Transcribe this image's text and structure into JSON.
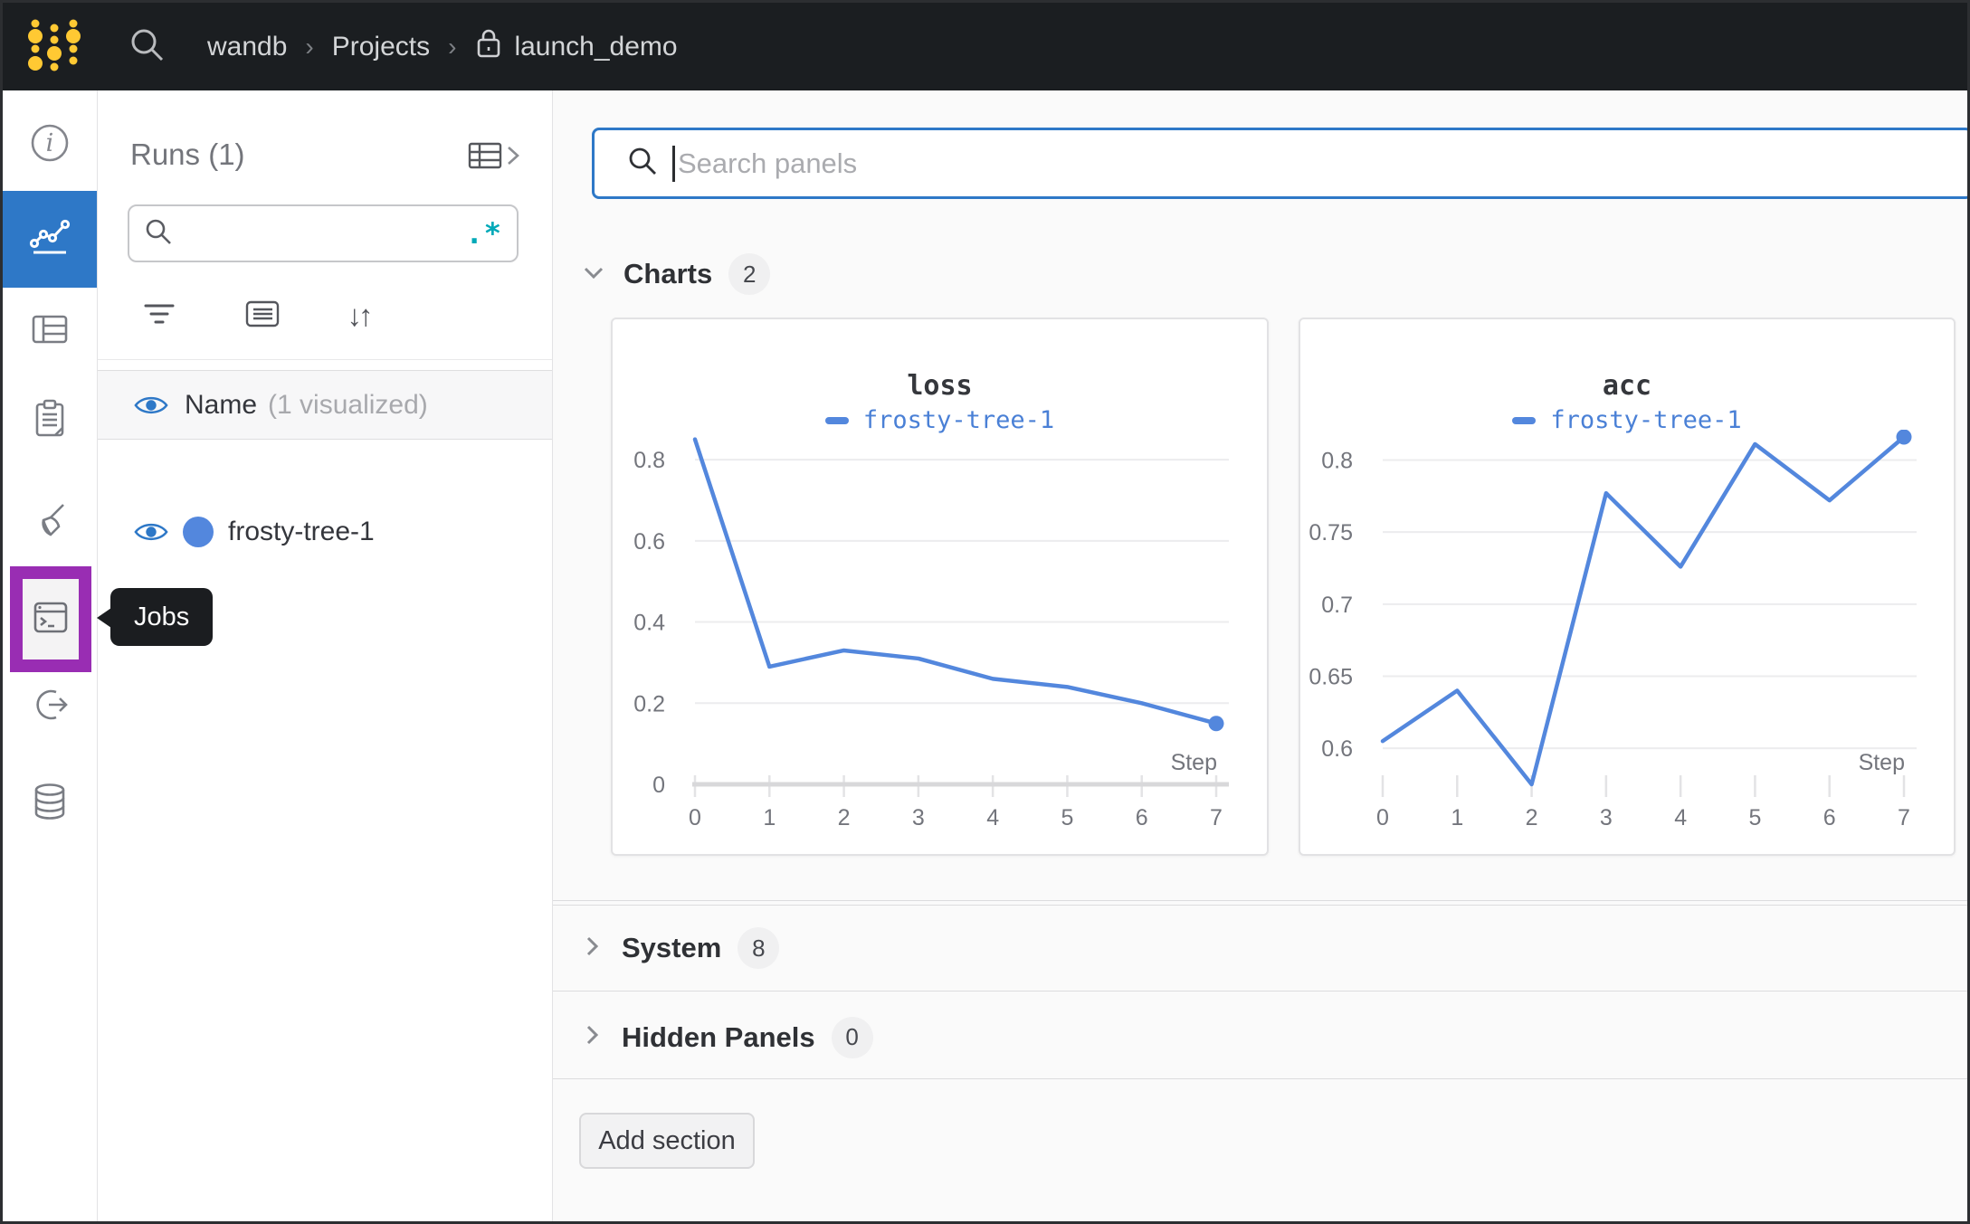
{
  "navbar": {
    "separator": "›",
    "breadcrumb": [
      {
        "label": "wandb"
      },
      {
        "label": "Projects"
      },
      {
        "label": "launch_demo"
      }
    ]
  },
  "sidebar": {
    "icons": [
      "info-icon",
      "workspace-chart-icon",
      "table-icon",
      "reports-clipboard-icon",
      "sweeps-broom-icon",
      "jobs-terminal-icon",
      "circle-arrow-icon",
      "artifacts-database-icon"
    ],
    "tooltip": "Jobs"
  },
  "runs_panel": {
    "title": "Runs (1)",
    "search": {
      "placeholder": "",
      "regex_glyph": ".*"
    },
    "sort_glyph": "↓↑",
    "header_row": {
      "label": "Name",
      "annotation": "(1 visualized)"
    },
    "runs": [
      {
        "name": "frosty-tree-1"
      }
    ]
  },
  "main": {
    "panel_search": {
      "placeholder": "Search panels"
    },
    "sections": [
      {
        "label": "Charts",
        "count": "2"
      },
      {
        "label": "System",
        "count": "8"
      },
      {
        "label": "Hidden Panels",
        "count": "0"
      }
    ],
    "add_section_label": "Add section"
  },
  "colors": {
    "accent_blue": "#2e78c7",
    "run_color": "#5387DD",
    "brand_yellow": "#FFC933",
    "regex_teal": "#00a9b8",
    "highlight_purple": "#992db3"
  },
  "chart_data": [
    {
      "type": "line",
      "title": "loss",
      "xlabel": "Step",
      "x": [
        0,
        1,
        2,
        3,
        4,
        5,
        6,
        7
      ],
      "series": [
        {
          "name": "frosty-tree-1",
          "values": [
            0.85,
            0.29,
            0.33,
            0.31,
            0.26,
            0.24,
            0.2,
            0.15
          ]
        }
      ],
      "yticks": [
        0,
        0.2,
        0.4,
        0.6,
        0.8
      ],
      "ylim": [
        0,
        0.856
      ],
      "axis_line": true,
      "end_dot": true,
      "grid": true,
      "legend_position": "top"
    },
    {
      "type": "line",
      "title": "acc",
      "xlabel": "Step",
      "x": [
        0,
        1,
        2,
        3,
        4,
        5,
        6,
        7
      ],
      "series": [
        {
          "name": "frosty-tree-1",
          "values": [
            0.605,
            0.64,
            0.575,
            0.777,
            0.726,
            0.811,
            0.772,
            0.816
          ]
        }
      ],
      "yticks": [
        0.6,
        0.65,
        0.7,
        0.75,
        0.8
      ],
      "ylim": [
        0.575,
        0.816
      ],
      "axis_line": false,
      "end_dot": true,
      "grid": true,
      "legend_position": "top"
    }
  ]
}
